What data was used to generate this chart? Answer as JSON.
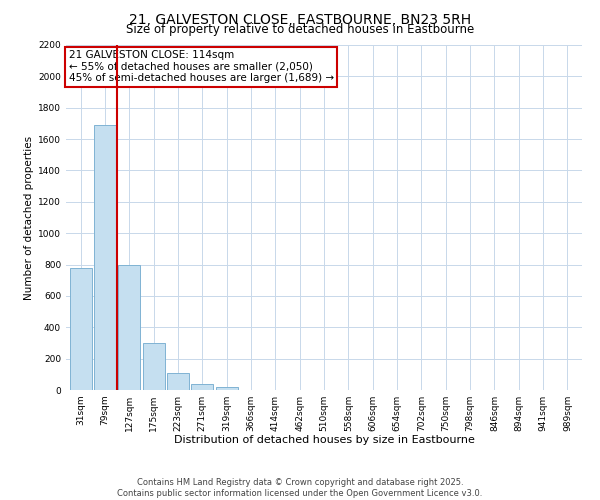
{
  "title": "21, GALVESTON CLOSE, EASTBOURNE, BN23 5RH",
  "subtitle": "Size of property relative to detached houses in Eastbourne",
  "xlabel": "Distribution of detached houses by size in Eastbourne",
  "ylabel": "Number of detached properties",
  "bar_labels": [
    "31sqm",
    "79sqm",
    "127sqm",
    "175sqm",
    "223sqm",
    "271sqm",
    "319sqm",
    "366sqm",
    "414sqm",
    "462sqm",
    "510sqm",
    "558sqm",
    "606sqm",
    "654sqm",
    "702sqm",
    "750sqm",
    "798sqm",
    "846sqm",
    "894sqm",
    "941sqm",
    "989sqm"
  ],
  "bar_values": [
    780,
    1690,
    800,
    300,
    110,
    40,
    20,
    0,
    0,
    0,
    0,
    0,
    0,
    0,
    0,
    0,
    0,
    0,
    0,
    0,
    0
  ],
  "bar_color": "#c5dff0",
  "bar_edge_color": "#7fb3d3",
  "background_color": "#ffffff",
  "grid_color": "#c8d8ea",
  "annotation_line1": "21 GALVESTON CLOSE: 114sqm",
  "annotation_line2": "← 55% of detached houses are smaller (2,050)",
  "annotation_line3": "45% of semi-detached houses are larger (1,689) →",
  "annotation_box_edge_color": "#cc0000",
  "vline_color": "#cc0000",
  "ylim": [
    0,
    2200
  ],
  "yticks": [
    0,
    200,
    400,
    600,
    800,
    1000,
    1200,
    1400,
    1600,
    1800,
    2000,
    2200
  ],
  "footnote1": "Contains HM Land Registry data © Crown copyright and database right 2025.",
  "footnote2": "Contains public sector information licensed under the Open Government Licence v3.0.",
  "title_fontsize": 10,
  "subtitle_fontsize": 8.5,
  "xlabel_fontsize": 8,
  "ylabel_fontsize": 7.5,
  "tick_fontsize": 6.5,
  "annotation_fontsize": 7.5,
  "footnote_fontsize": 6
}
